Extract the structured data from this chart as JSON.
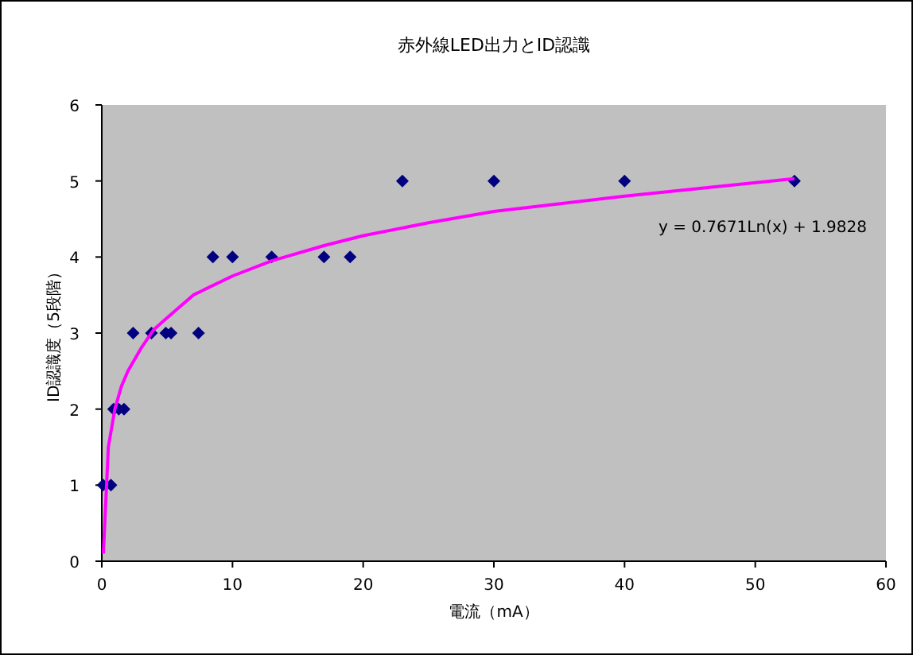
{
  "chart_data": {
    "type": "scatter",
    "title": "赤外線LED出力とID認識",
    "xlabel": "電流（mA）",
    "ylabel": "ID認識度（5段階）",
    "series": [
      {
        "type": "scatter",
        "color": "#000080",
        "marker": "diamond",
        "x": [
          0.1,
          0.7,
          0.9,
          1.3,
          1.7,
          2.4,
          3.8,
          4.9,
          5.3,
          7.4,
          8.5,
          10,
          13,
          17,
          19,
          23,
          30,
          40,
          53
        ],
        "values": [
          1,
          1,
          2,
          2,
          2,
          3,
          3,
          3,
          3,
          3,
          4,
          4,
          4,
          4,
          4,
          5,
          5,
          5,
          5
        ]
      },
      {
        "type": "line",
        "color": "#ff00ff",
        "marker": "none",
        "x": [
          0.12,
          0.5,
          1,
          1.5,
          2,
          3,
          4,
          5,
          7,
          10,
          13,
          17,
          20,
          25,
          30,
          40,
          53
        ],
        "values": [
          0.1,
          1.5,
          2.0,
          2.3,
          2.5,
          2.8,
          3.05,
          3.2,
          3.5,
          3.75,
          3.95,
          4.15,
          4.28,
          4.45,
          4.6,
          4.8,
          5.03
        ]
      }
    ],
    "annotations": [
      "y = 0.7671Ln(x) + 1.9828"
    ],
    "xlim": [
      0,
      60
    ],
    "xticks": [
      0,
      10,
      20,
      30,
      40,
      50,
      60
    ],
    "ylim": [
      0,
      6
    ],
    "yticks": [
      0,
      1,
      2,
      3,
      4,
      5,
      6
    ],
    "grid": false
  }
}
